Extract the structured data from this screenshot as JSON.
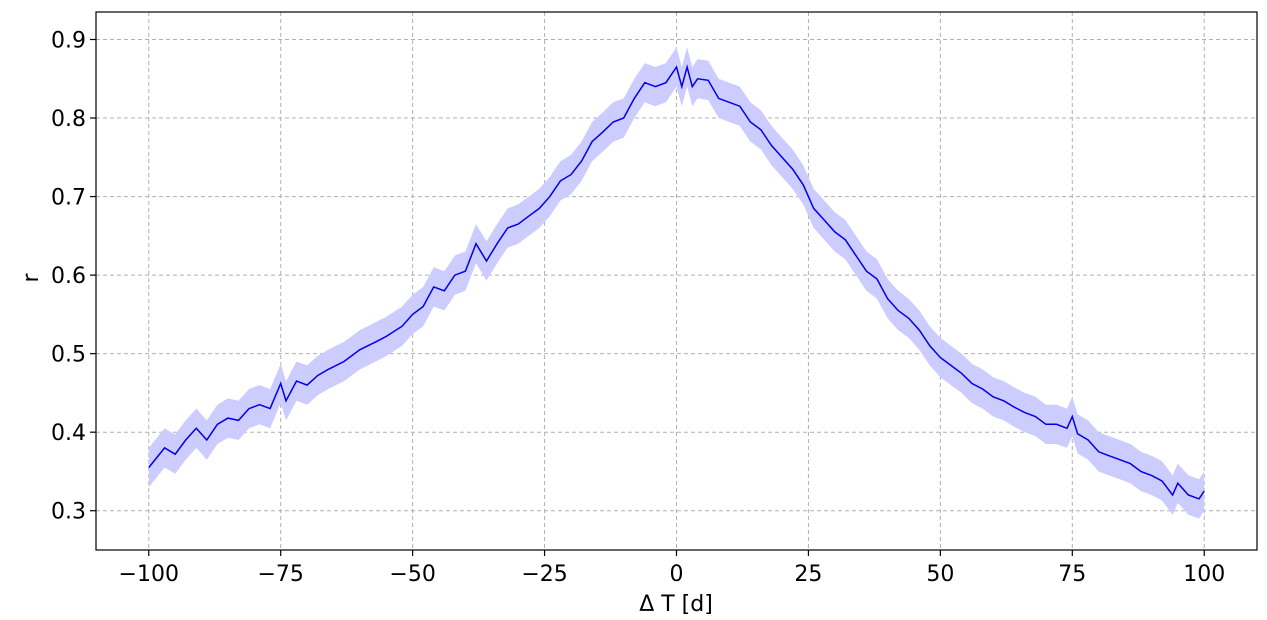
{
  "chart_data": {
    "type": "line",
    "xlabel": "Δ T [d]",
    "ylabel": "r",
    "xlim": [
      -110,
      110
    ],
    "ylim": [
      0.25,
      0.935
    ],
    "x_ticks": [
      -100,
      -75,
      -50,
      -25,
      0,
      25,
      50,
      75,
      100
    ],
    "x_tick_labels": [
      "−100",
      "−75",
      "−50",
      "−25",
      "0",
      "25",
      "50",
      "75",
      "100"
    ],
    "y_ticks": [
      0.3,
      0.4,
      0.5,
      0.6,
      0.7,
      0.8,
      0.9
    ],
    "y_tick_labels": [
      "0.3",
      "0.4",
      "0.5",
      "0.6",
      "0.7",
      "0.8",
      "0.9"
    ],
    "grid": true,
    "series": [
      {
        "line_color": "#0000ee",
        "band_color": "#ccccff",
        "points": [
          [
            -100,
            0.355
          ],
          [
            -97,
            0.38
          ],
          [
            -95,
            0.372
          ],
          [
            -93,
            0.39
          ],
          [
            -91,
            0.405
          ],
          [
            -89,
            0.39
          ],
          [
            -87,
            0.41
          ],
          [
            -85,
            0.418
          ],
          [
            -83,
            0.415
          ],
          [
            -81,
            0.43
          ],
          [
            -79,
            0.435
          ],
          [
            -77,
            0.43
          ],
          [
            -75,
            0.462
          ],
          [
            -74,
            0.44
          ],
          [
            -72,
            0.465
          ],
          [
            -70,
            0.46
          ],
          [
            -68,
            0.472
          ],
          [
            -66,
            0.48
          ],
          [
            -63,
            0.49
          ],
          [
            -60,
            0.505
          ],
          [
            -57,
            0.515
          ],
          [
            -55,
            0.522
          ],
          [
            -52,
            0.535
          ],
          [
            -50,
            0.55
          ],
          [
            -48,
            0.56
          ],
          [
            -46,
            0.585
          ],
          [
            -44,
            0.58
          ],
          [
            -42,
            0.6
          ],
          [
            -40,
            0.605
          ],
          [
            -38,
            0.64
          ],
          [
            -36,
            0.618
          ],
          [
            -34,
            0.64
          ],
          [
            -32,
            0.66
          ],
          [
            -30,
            0.665
          ],
          [
            -28,
            0.675
          ],
          [
            -26,
            0.685
          ],
          [
            -24,
            0.7
          ],
          [
            -22,
            0.72
          ],
          [
            -20,
            0.728
          ],
          [
            -18,
            0.745
          ],
          [
            -16,
            0.77
          ],
          [
            -14,
            0.782
          ],
          [
            -12,
            0.795
          ],
          [
            -10,
            0.8
          ],
          [
            -8,
            0.825
          ],
          [
            -6,
            0.845
          ],
          [
            -4,
            0.84
          ],
          [
            -2,
            0.845
          ],
          [
            0,
            0.865
          ],
          [
            1,
            0.84
          ],
          [
            2,
            0.865
          ],
          [
            3,
            0.84
          ],
          [
            4,
            0.85
          ],
          [
            6,
            0.848
          ],
          [
            8,
            0.825
          ],
          [
            10,
            0.82
          ],
          [
            12,
            0.815
          ],
          [
            14,
            0.795
          ],
          [
            16,
            0.785
          ],
          [
            18,
            0.765
          ],
          [
            20,
            0.75
          ],
          [
            22,
            0.735
          ],
          [
            24,
            0.715
          ],
          [
            26,
            0.685
          ],
          [
            28,
            0.67
          ],
          [
            30,
            0.655
          ],
          [
            32,
            0.645
          ],
          [
            34,
            0.625
          ],
          [
            36,
            0.605
          ],
          [
            38,
            0.595
          ],
          [
            40,
            0.57
          ],
          [
            42,
            0.555
          ],
          [
            44,
            0.545
          ],
          [
            46,
            0.53
          ],
          [
            48,
            0.51
          ],
          [
            50,
            0.495
          ],
          [
            52,
            0.485
          ],
          [
            54,
            0.475
          ],
          [
            56,
            0.462
          ],
          [
            58,
            0.455
          ],
          [
            60,
            0.445
          ],
          [
            62,
            0.44
          ],
          [
            64,
            0.432
          ],
          [
            66,
            0.425
          ],
          [
            68,
            0.42
          ],
          [
            70,
            0.41
          ],
          [
            72,
            0.41
          ],
          [
            74,
            0.405
          ],
          [
            75,
            0.42
          ],
          [
            76,
            0.398
          ],
          [
            78,
            0.39
          ],
          [
            80,
            0.375
          ],
          [
            82,
            0.37
          ],
          [
            84,
            0.365
          ],
          [
            86,
            0.36
          ],
          [
            88,
            0.35
          ],
          [
            90,
            0.345
          ],
          [
            92,
            0.338
          ],
          [
            94,
            0.32
          ],
          [
            95,
            0.335
          ],
          [
            97,
            0.32
          ],
          [
            99,
            0.315
          ],
          [
            100,
            0.325
          ]
        ],
        "band_halfwidth": 0.025
      }
    ]
  }
}
